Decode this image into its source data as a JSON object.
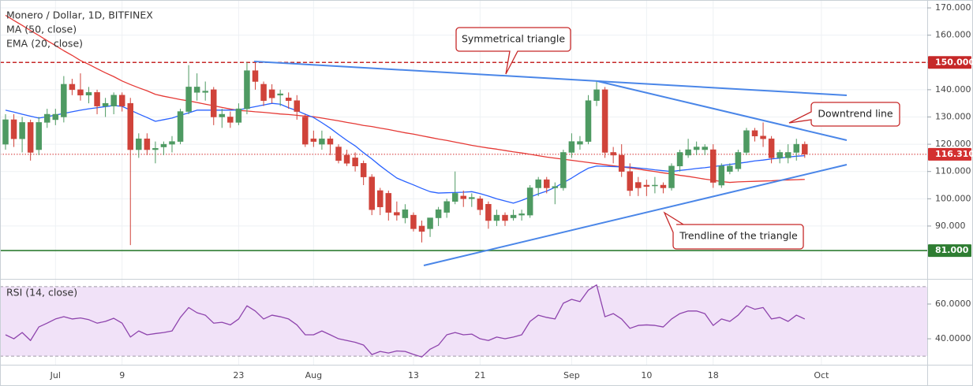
{
  "chart_data": [
    {
      "type": "candlestick",
      "title": "Monero / Dollar, 1D, BITFINEX",
      "categories": [
        null,
        null,
        null,
        null,
        null,
        null,
        "Jul",
        null,
        null,
        null,
        null,
        null,
        null,
        null,
        "9",
        null,
        null,
        null,
        null,
        null,
        null,
        null,
        null,
        null,
        null,
        null,
        null,
        null,
        "23",
        null,
        null,
        null,
        null,
        null,
        null,
        null,
        null,
        "Aug",
        null,
        null,
        null,
        null,
        null,
        null,
        null,
        null,
        null,
        null,
        null,
        "13",
        null,
        null,
        null,
        null,
        null,
        null,
        null,
        "21",
        null,
        null,
        null,
        null,
        null,
        null,
        null,
        null,
        null,
        null,
        "Sep",
        null,
        null,
        null,
        null,
        null,
        null,
        null,
        null,
        "10",
        null,
        null,
        null,
        null,
        null,
        null,
        null,
        "18",
        null,
        null,
        null,
        null,
        null,
        null,
        null,
        null,
        null,
        null,
        null,
        null,
        "Oct"
      ],
      "open": [
        120,
        129,
        122,
        128,
        118,
        128,
        129,
        130,
        142,
        140,
        138,
        139,
        134,
        134,
        138,
        135,
        118,
        122,
        118,
        119,
        120,
        121,
        132,
        139,
        139,
        140,
        130,
        130,
        128,
        133,
        147,
        142,
        140,
        138,
        137,
        136,
        130,
        122,
        120,
        122,
        119,
        116,
        115,
        113,
        108,
        103,
        102,
        95,
        93,
        94,
        90,
        89,
        93,
        95,
        99,
        101,
        100,
        100,
        98,
        92,
        94,
        93,
        94,
        94,
        104,
        107,
        104,
        104,
        117,
        120,
        121,
        136,
        140,
        117,
        116,
        110,
        106,
        105,
        105,
        105,
        104,
        112,
        116,
        118,
        118,
        118,
        105,
        110,
        111,
        117,
        125,
        123,
        122,
        115,
        115,
        117,
        120,
        null,
        null
      ],
      "high": [
        131,
        131,
        130,
        129,
        130,
        133,
        133,
        145,
        144,
        146,
        141,
        140,
        137,
        139,
        139,
        137,
        124,
        124,
        121,
        121,
        123,
        133,
        149,
        146,
        143,
        141,
        133,
        132,
        135,
        150,
        150,
        143,
        142,
        140,
        139,
        138,
        131,
        125,
        125,
        123,
        120,
        118,
        117,
        114,
        109,
        104,
        103,
        99,
        98,
        95,
        92,
        93,
        97,
        100,
        110,
        103,
        102,
        101,
        99,
        96,
        95,
        96,
        96,
        105,
        108,
        108,
        106,
        118,
        124,
        123,
        138,
        143,
        141,
        119,
        120,
        113,
        108,
        107,
        108,
        106,
        113,
        118,
        122,
        121,
        120,
        120,
        113,
        113,
        118,
        126,
        126,
        128,
        123,
        118,
        120,
        122,
        121,
        null,
        null
      ],
      "low": [
        118,
        119,
        117,
        114,
        116,
        126,
        127,
        128,
        138,
        136,
        135,
        131,
        130,
        131,
        132,
        83,
        115,
        116,
        113,
        116,
        117,
        120,
        131,
        136,
        136,
        127,
        126,
        126,
        127,
        131,
        140,
        134,
        135,
        134,
        133,
        129,
        119,
        119,
        118,
        116,
        113,
        112,
        110,
        105,
        94,
        94,
        92,
        92,
        91,
        88,
        84,
        86,
        90,
        93,
        98,
        97,
        97,
        94,
        89,
        90,
        90,
        92,
        92,
        93,
        101,
        102,
        98,
        103,
        115,
        118,
        120,
        134,
        115,
        113,
        108,
        101,
        101,
        101,
        102,
        102,
        103,
        110,
        115,
        116,
        116,
        104,
        104,
        109,
        110,
        116,
        121,
        119,
        113,
        113,
        113,
        114,
        115,
        null,
        null
      ],
      "close": [
        129,
        122,
        128,
        117,
        128,
        131,
        131,
        142,
        140,
        138,
        139,
        134,
        135,
        138,
        134,
        118,
        122,
        118,
        118.5,
        120,
        121,
        132,
        141,
        141,
        139.5,
        130,
        131,
        128,
        133,
        147,
        143,
        136,
        137,
        138.5,
        136,
        132,
        120,
        121,
        122,
        120,
        114,
        113,
        112,
        108,
        96,
        97,
        95,
        94,
        96,
        89,
        88,
        93,
        96,
        99,
        102,
        100,
        100.5,
        96,
        92,
        94,
        92,
        94,
        94.5,
        104,
        107,
        104,
        104.5,
        117,
        121,
        121,
        136,
        140,
        117,
        116,
        110,
        103,
        104,
        104.5,
        105,
        104,
        112,
        117,
        118,
        119,
        119,
        106,
        112,
        112,
        117,
        125,
        123,
        122,
        115,
        117,
        117,
        120,
        116.31,
        null,
        null
      ],
      "up_color": "#4e9a62",
      "down_color": "#d0433a",
      "series": [
        {
          "name": "MA (50, close)",
          "color": "#e53935",
          "values": [
            167.3,
            165.4,
            163.6,
            161.7,
            159.9,
            158,
            156.2,
            154.3,
            152.6,
            150.7,
            149.3,
            147.7,
            146.2,
            144.8,
            143.2,
            141.9,
            140.7,
            139.6,
            138.3,
            137.6,
            137,
            136.4,
            135.9,
            135.3,
            134.7,
            134.1,
            133.5,
            132.9,
            132.4,
            132.2,
            131.9,
            131.7,
            131.4,
            131.1,
            130.9,
            130.6,
            130.3,
            130.1,
            129.6,
            129.1,
            128.6,
            128,
            127.5,
            126.9,
            126.5,
            125.9,
            125.4,
            124.8,
            124.2,
            123.7,
            123.1,
            122.5,
            121.9,
            121.4,
            120.8,
            120.2,
            119.6,
            119.1,
            118.6,
            118.2,
            117.7,
            117.2,
            116.8,
            116.3,
            115.8,
            115.3,
            114.9,
            114.5,
            114.1,
            113.7,
            113.3,
            112.9,
            112.5,
            112.1,
            111.7,
            111.3,
            110.9,
            110.4,
            110,
            109.5,
            109.1,
            108.6,
            108.2,
            107.7,
            107.2,
            106.8,
            106.3,
            106,
            106.2,
            106.3,
            106.4,
            106.5,
            106.6,
            106.8,
            106.9,
            107,
            107.1,
            null,
            null
          ]
        },
        {
          "name": "EMA (20, close)",
          "color": "#2962ff",
          "values": [
            132.5,
            131.8,
            131,
            130.3,
            129.6,
            130.1,
            130.7,
            131.3,
            131.9,
            132.5,
            133,
            133.4,
            133.8,
            134.2,
            133.9,
            132.5,
            131.1,
            129.8,
            128.4,
            129,
            129.6,
            130.6,
            131.5,
            132.5,
            132.5,
            132.5,
            132.5,
            132.5,
            132.6,
            133.2,
            133.8,
            134.4,
            135,
            134.7,
            133.4,
            132.3,
            131,
            129.8,
            127.9,
            125.9,
            123.6,
            121.4,
            119.4,
            116.9,
            114.6,
            112.1,
            109.8,
            107.6,
            106.3,
            105.1,
            103.8,
            102.6,
            102.1,
            102.2,
            102.3,
            102.4,
            102.6,
            101.9,
            101,
            100,
            99.2,
            98.4,
            99.4,
            100.6,
            101.8,
            102.8,
            104.2,
            105.9,
            107.6,
            109.5,
            111.2,
            112,
            111.9,
            111.8,
            111.7,
            111.6,
            111.3,
            111,
            110.6,
            110.3,
            110,
            110.4,
            110.7,
            111.1,
            111.4,
            111.8,
            112.2,
            112.6,
            113,
            113.4,
            113.9,
            114.2,
            114.6,
            114.9,
            115.3,
            115.6,
            115.8,
            null,
            null
          ]
        }
      ],
      "ylim": [
        71.2,
        172.9
      ],
      "yticks": [
        {
          "value": 90,
          "label": "90.000"
        },
        {
          "value": 100,
          "label": "100.000"
        },
        {
          "value": 110,
          "label": "110.000"
        },
        {
          "value": 120,
          "label": "120.000"
        },
        {
          "value": 130,
          "label": "130.000"
        },
        {
          "value": 140,
          "label": "140.000"
        },
        {
          "value": 150,
          "label": "150.000"
        },
        {
          "value": 160,
          "label": "160.000"
        },
        {
          "value": 170,
          "label": "170.000"
        }
      ],
      "price_lines": [
        {
          "value": 150,
          "label": "150.000",
          "color": "#c62828",
          "style": "dashed"
        },
        {
          "value": 81,
          "label": "81.000",
          "color": "#2e7d32",
          "style": "solid"
        },
        {
          "value": 116.31,
          "label": "116.310",
          "color": "#d32f2f",
          "style": "dotted"
        }
      ],
      "annotations": [
        "Symmetrical triangle",
        "Downtrend line",
        "Trendline of the triangle"
      ],
      "grid": true
    },
    {
      "type": "line",
      "title": "RSI (14, close)",
      "color": "#8e44ad",
      "values": [
        42.3,
        40,
        43.6,
        39,
        46.8,
        49,
        51.4,
        52.7,
        51.4,
        52,
        51,
        49,
        50,
        51.8,
        49,
        41,
        44.5,
        42.3,
        43,
        43.6,
        44.5,
        52.3,
        58,
        55,
        53.6,
        49,
        49.5,
        48,
        51.4,
        59,
        56,
        51.4,
        53.6,
        52.7,
        51.4,
        48,
        42.3,
        42.3,
        44.5,
        42.3,
        40,
        39,
        38,
        36.4,
        30.9,
        32.7,
        31.8,
        33,
        32.7,
        31,
        29.5,
        34,
        36.4,
        42.3,
        43.6,
        42.3,
        42.7,
        40,
        39,
        41,
        40,
        41,
        42.3,
        50,
        53.6,
        52.3,
        51.4,
        60.5,
        62.7,
        61.4,
        68,
        71,
        52.7,
        54.5,
        51.4,
        46,
        47.7,
        48,
        47.7,
        46.8,
        51.4,
        54.5,
        56,
        56,
        54.5,
        47.7,
        51.4,
        50,
        53.6,
        59,
        57,
        58,
        51.4,
        52.3,
        50,
        53.6,
        51.4,
        null,
        null
      ],
      "ylim": [
        25.5,
        73.6
      ],
      "yticks": [
        {
          "value": 40,
          "label": "40.0000"
        },
        {
          "value": 60,
          "label": "60.0000"
        }
      ],
      "bands": [
        30,
        70
      ],
      "band_color": "#f1e2f8",
      "grid": true
    }
  ]
}
